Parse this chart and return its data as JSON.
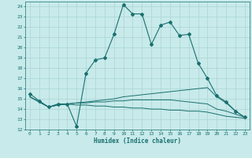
{
  "xlabel": "Humidex (Indice chaleur)",
  "ylabel": "",
  "xlim": [
    -0.5,
    23.5
  ],
  "ylim": [
    12,
    24.5
  ],
  "yticks": [
    12,
    13,
    14,
    15,
    16,
    17,
    18,
    19,
    20,
    21,
    22,
    23,
    24
  ],
  "xticks": [
    0,
    1,
    2,
    3,
    4,
    5,
    6,
    7,
    8,
    9,
    10,
    11,
    12,
    13,
    14,
    15,
    16,
    17,
    18,
    19,
    20,
    21,
    22,
    23
  ],
  "bg_color": "#c8eaea",
  "line_color": "#1a7070",
  "grid_color": "#aad4d4",
  "series": [
    {
      "x": [
        0,
        1,
        2,
        3,
        4,
        5,
        6,
        7,
        8,
        9,
        10,
        11,
        12,
        13,
        14,
        15,
        16,
        17,
        18,
        19,
        20,
        21,
        22,
        23
      ],
      "y": [
        15.5,
        14.8,
        14.2,
        14.5,
        14.5,
        12.3,
        17.5,
        18.8,
        19.0,
        21.3,
        24.2,
        23.3,
        23.3,
        20.3,
        22.2,
        22.5,
        21.2,
        21.3,
        18.5,
        17.0,
        15.3,
        14.7,
        13.8,
        13.2
      ],
      "has_markers": true
    },
    {
      "x": [
        0,
        1,
        2,
        3,
        4,
        5,
        6,
        7,
        8,
        9,
        10,
        11,
        12,
        13,
        14,
        15,
        16,
        17,
        18,
        19,
        20,
        21,
        22,
        23
      ],
      "y": [
        15.2,
        14.7,
        14.2,
        14.4,
        14.5,
        14.6,
        14.7,
        14.8,
        14.9,
        15.0,
        15.2,
        15.3,
        15.4,
        15.5,
        15.6,
        15.7,
        15.8,
        15.9,
        16.0,
        16.1,
        15.2,
        14.6,
        13.8,
        13.2
      ],
      "has_markers": false
    },
    {
      "x": [
        0,
        1,
        2,
        3,
        4,
        5,
        6,
        7,
        8,
        9,
        10,
        11,
        12,
        13,
        14,
        15,
        16,
        17,
        18,
        19,
        20,
        21,
        22,
        23
      ],
      "y": [
        15.2,
        14.7,
        14.2,
        14.4,
        14.5,
        14.6,
        14.6,
        14.7,
        14.7,
        14.8,
        14.8,
        14.9,
        14.9,
        14.9,
        14.9,
        14.9,
        14.8,
        14.7,
        14.6,
        14.5,
        14.0,
        13.8,
        13.5,
        13.2
      ],
      "has_markers": false
    },
    {
      "x": [
        0,
        1,
        2,
        3,
        4,
        5,
        6,
        7,
        8,
        9,
        10,
        11,
        12,
        13,
        14,
        15,
        16,
        17,
        18,
        19,
        20,
        21,
        22,
        23
      ],
      "y": [
        15.2,
        14.7,
        14.2,
        14.4,
        14.5,
        14.4,
        14.4,
        14.3,
        14.3,
        14.2,
        14.2,
        14.1,
        14.1,
        14.0,
        14.0,
        13.9,
        13.9,
        13.8,
        13.8,
        13.7,
        13.5,
        13.3,
        13.2,
        13.1
      ],
      "has_markers": false
    }
  ]
}
